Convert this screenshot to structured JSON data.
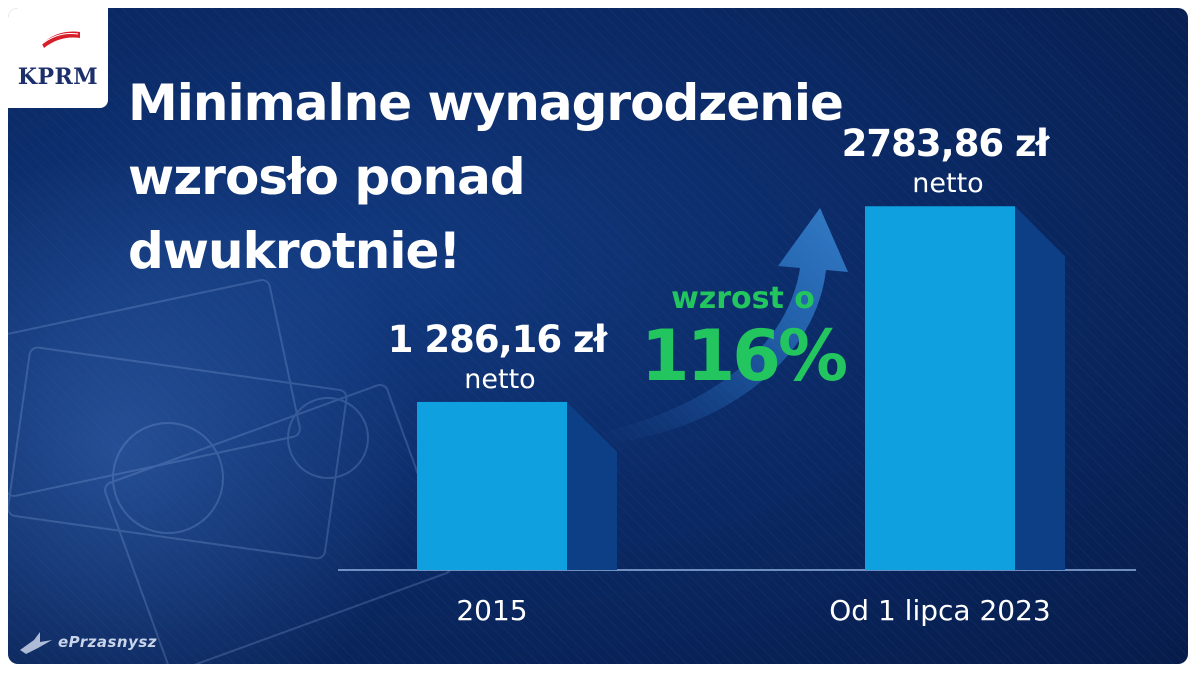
{
  "logo": {
    "text": "KPRM"
  },
  "headline": {
    "lines": [
      "Minimalne wynagrodzenie",
      "wzrosło ponad",
      "dwukrotnie!"
    ]
  },
  "growth": {
    "label": "wzrost o",
    "value": "116%"
  },
  "watermark": {
    "text": "ePrzasnysz"
  },
  "colors": {
    "bar_front": "#0fa0e0",
    "bar_side": "#0d3f86",
    "growth_text": "#22c55e",
    "background": "#0b2a66"
  },
  "chart_data": {
    "type": "bar",
    "categories": [
      "2015",
      "Od 1 lipca 2023"
    ],
    "values": [
      1286.16,
      2783.86
    ],
    "value_labels": [
      "1 286,16 zł",
      "2783,86 zł"
    ],
    "value_units": [
      "netto",
      "netto"
    ],
    "title": "",
    "xlabel": "",
    "ylabel": "",
    "ylim": [
      0,
      3000
    ],
    "grid": false,
    "legend": "none"
  }
}
